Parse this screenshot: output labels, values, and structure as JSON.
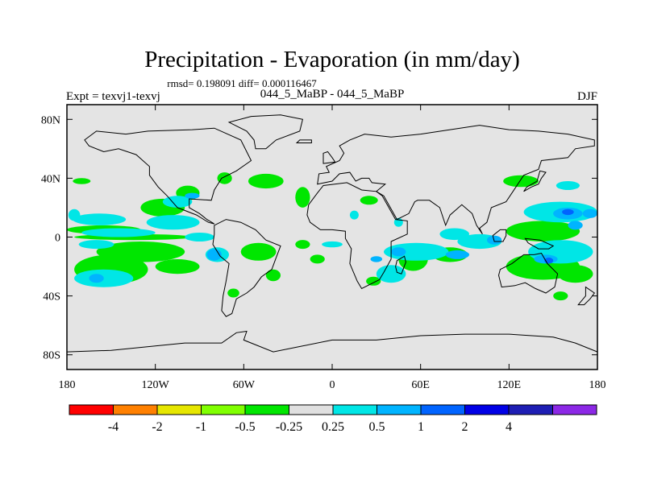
{
  "chart_data": {
    "type": "heatmap",
    "title": "Precipitation - Evaporation (in mm/day)",
    "stats_line": "rmsd= 0.198091 diff= 0.000116467",
    "left_label": "Expt = texvj1-texvj",
    "center_label": "044_5_MaBP - 044_5_MaBP",
    "right_label": "DJF",
    "x_axis": {
      "range": [
        -180,
        180
      ],
      "ticks": [
        {
          "value": -180,
          "label": "180"
        },
        {
          "value": -120,
          "label": "120W"
        },
        {
          "value": -60,
          "label": "60W"
        },
        {
          "value": 0,
          "label": "0"
        },
        {
          "value": 60,
          "label": "60E"
        },
        {
          "value": 120,
          "label": "120E"
        },
        {
          "value": 180,
          "label": "180"
        }
      ]
    },
    "y_axis": {
      "range": [
        -90,
        90
      ],
      "ticks": [
        {
          "value": 80,
          "label": "80N"
        },
        {
          "value": 40,
          "label": "40N"
        },
        {
          "value": 0,
          "label": "0"
        },
        {
          "value": -40,
          "label": "40S"
        },
        {
          "value": -80,
          "label": "80S"
        }
      ]
    },
    "colorbar": {
      "colors": [
        "#ff0000",
        "#ff8000",
        "#e6e600",
        "#80ff00",
        "#00e600",
        "#e0e0e0",
        "#00e6e6",
        "#00b4ff",
        "#0064ff",
        "#0000e6",
        "#1e1eb4",
        "#8c28e6"
      ],
      "labels": [
        "-4",
        "-2",
        "-1",
        "-0.5",
        "-0.25",
        "0.25",
        "0.5",
        "1",
        "2",
        "4"
      ]
    },
    "regions": [
      {
        "class": "-0.5 to -0.25",
        "color": "#00e600",
        "blobs": [
          {
            "lon": -170,
            "lat": 38,
            "rx": 6,
            "ry": 2
          },
          {
            "lon": -155,
            "lat": 5,
            "rx": 25,
            "ry": 3
          },
          {
            "lon": -135,
            "lat": 0,
            "rx": 40,
            "ry": 2
          },
          {
            "lon": -130,
            "lat": -10,
            "rx": 30,
            "ry": 7
          },
          {
            "lon": -150,
            "lat": -22,
            "rx": 25,
            "ry": 10
          },
          {
            "lon": -105,
            "lat": -20,
            "rx": 15,
            "ry": 5
          },
          {
            "lon": -115,
            "lat": 20,
            "rx": 15,
            "ry": 6
          },
          {
            "lon": -98,
            "lat": 30,
            "rx": 8,
            "ry": 5
          },
          {
            "lon": -50,
            "lat": -10,
            "rx": 12,
            "ry": 6
          },
          {
            "lon": -40,
            "lat": -26,
            "rx": 5,
            "ry": 4
          },
          {
            "lon": -20,
            "lat": -5,
            "rx": 5,
            "ry": 3
          },
          {
            "lon": -10,
            "lat": -15,
            "rx": 5,
            "ry": 3
          },
          {
            "lon": -73,
            "lat": 40,
            "rx": 5,
            "ry": 4
          },
          {
            "lon": -45,
            "lat": 38,
            "rx": 12,
            "ry": 5
          },
          {
            "lon": -20,
            "lat": 27,
            "rx": 5,
            "ry": 7
          },
          {
            "lon": 25,
            "lat": 25,
            "rx": 6,
            "ry": 3
          },
          {
            "lon": 55,
            "lat": -15,
            "rx": 10,
            "ry": 8
          },
          {
            "lon": 28,
            "lat": -30,
            "rx": 5,
            "ry": 3
          },
          {
            "lon": 80,
            "lat": -12,
            "rx": 12,
            "ry": 5
          },
          {
            "lon": 128,
            "lat": 38,
            "rx": 12,
            "ry": 4
          },
          {
            "lon": 143,
            "lat": 4,
            "rx": 25,
            "ry": 7
          },
          {
            "lon": 143,
            "lat": -20,
            "rx": 25,
            "ry": 9
          },
          {
            "lon": 165,
            "lat": -25,
            "rx": 12,
            "ry": 6
          },
          {
            "lon": -67,
            "lat": -38,
            "rx": 4,
            "ry": 3
          },
          {
            "lon": 155,
            "lat": -40,
            "rx": 5,
            "ry": 3
          }
        ]
      },
      {
        "class": "0.25 to 0.5",
        "color": "#00e6e6",
        "blobs": [
          {
            "lon": -175,
            "lat": 15,
            "rx": 4,
            "ry": 4
          },
          {
            "lon": -158,
            "lat": 12,
            "rx": 18,
            "ry": 4
          },
          {
            "lon": -160,
            "lat": -5,
            "rx": 12,
            "ry": 3
          },
          {
            "lon": -145,
            "lat": 3,
            "rx": 25,
            "ry": 3
          },
          {
            "lon": -108,
            "lat": 10,
            "rx": 18,
            "ry": 5
          },
          {
            "lon": -105,
            "lat": 24,
            "rx": 10,
            "ry": 4
          },
          {
            "lon": -155,
            "lat": -28,
            "rx": 20,
            "ry": 6
          },
          {
            "lon": -90,
            "lat": 0,
            "rx": 10,
            "ry": 3
          },
          {
            "lon": -78,
            "lat": -12,
            "rx": 8,
            "ry": 5
          },
          {
            "lon": 0,
            "lat": -5,
            "rx": 7,
            "ry": 2
          },
          {
            "lon": 57,
            "lat": -10,
            "rx": 22,
            "ry": 6
          },
          {
            "lon": 40,
            "lat": -25,
            "rx": 10,
            "ry": 6
          },
          {
            "lon": 100,
            "lat": -3,
            "rx": 15,
            "ry": 5
          },
          {
            "lon": 83,
            "lat": 2,
            "rx": 10,
            "ry": 4
          },
          {
            "lon": 155,
            "lat": 17,
            "rx": 25,
            "ry": 7
          },
          {
            "lon": 155,
            "lat": -10,
            "rx": 22,
            "ry": 8
          },
          {
            "lon": 160,
            "lat": 35,
            "rx": 8,
            "ry": 3
          },
          {
            "lon": 15,
            "lat": 15,
            "rx": 3,
            "ry": 3
          },
          {
            "lon": 45,
            "lat": 10,
            "rx": 3,
            "ry": 3
          }
        ]
      },
      {
        "class": "0.5 to 1",
        "color": "#00b4ff",
        "blobs": [
          {
            "lon": -95,
            "lat": 28,
            "rx": 5,
            "ry": 2
          },
          {
            "lon": -160,
            "lat": -28,
            "rx": 5,
            "ry": 3
          },
          {
            "lon": -80,
            "lat": -12,
            "rx": 5,
            "ry": 4
          },
          {
            "lon": 85,
            "lat": -12,
            "rx": 8,
            "ry": 3
          },
          {
            "lon": 110,
            "lat": -2,
            "rx": 5,
            "ry": 3
          },
          {
            "lon": 45,
            "lat": -10,
            "rx": 5,
            "ry": 3
          },
          {
            "lon": 30,
            "lat": -15,
            "rx": 4,
            "ry": 2
          },
          {
            "lon": 160,
            "lat": 16,
            "rx": 10,
            "ry": 4
          },
          {
            "lon": 145,
            "lat": -15,
            "rx": 8,
            "ry": 3
          },
          {
            "lon": 165,
            "lat": 8,
            "rx": 5,
            "ry": 3
          },
          {
            "lon": 175,
            "lat": 16,
            "rx": 5,
            "ry": 3
          }
        ]
      },
      {
        "class": "1 to 2",
        "color": "#0064ff",
        "blobs": [
          {
            "lon": 160,
            "lat": 17,
            "rx": 4,
            "ry": 2
          },
          {
            "lon": 147,
            "lat": -16,
            "rx": 3,
            "ry": 2
          }
        ]
      }
    ],
    "coastline_note": "Idealized continental outlines (America, Africa, Eurasia, Australia, Antarctica) drawn in black."
  }
}
